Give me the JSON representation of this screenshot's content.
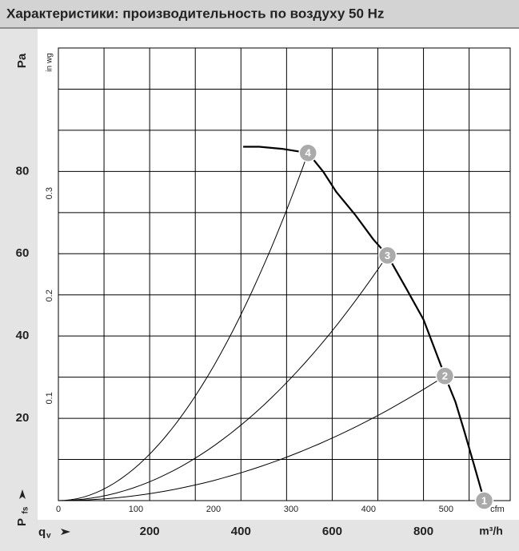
{
  "chart_data": {
    "type": "line",
    "title": "Характеристики: производительность по воздуху 50 Hz",
    "x_label": "m³/h",
    "x_symbol": "q",
    "x_symbol_sub": "v",
    "y_label": "Pa",
    "y_symbol": "P",
    "y_symbol_sub": "fs",
    "x2_label": "cfm",
    "y2_label": "in wg",
    "xlim": [
      0,
      990
    ],
    "xticks": [
      200,
      400,
      600,
      800
    ],
    "xgrid": [
      100,
      200,
      300,
      400,
      500,
      600,
      700,
      800,
      900
    ],
    "ylim": [
      0,
      110
    ],
    "yticks": [
      20,
      40,
      60,
      80
    ],
    "ygrid": [
      10,
      20,
      30,
      40,
      50,
      60,
      70,
      80,
      90,
      100
    ],
    "x2lim": [
      0,
      582.7
    ],
    "x2ticks": [
      0,
      100,
      200,
      300,
      400,
      500
    ],
    "y2lim": [
      0,
      0.4418
    ],
    "y2ticks": [
      0.1,
      0.2,
      0.3
    ],
    "series": [
      {
        "color": "#000000",
        "x": [
          405,
          440,
          490,
          547,
          580,
          609,
          650,
          690,
          721,
          760,
          800,
          847,
          870,
          889,
          910,
          933
        ],
        "values": [
          86,
          86,
          85.5,
          84.5,
          80,
          75,
          69.5,
          63.5,
          59.6,
          52,
          44,
          30.3,
          24,
          17,
          9,
          0
        ]
      }
    ],
    "operating_points": {
      "color": "#aaaaaa",
      "x": [
        933,
        847,
        721,
        547
      ],
      "values": [
        0,
        30.3,
        59.6,
        84.5
      ],
      "labels": [
        "1",
        "2",
        "3",
        "4"
      ]
    }
  }
}
